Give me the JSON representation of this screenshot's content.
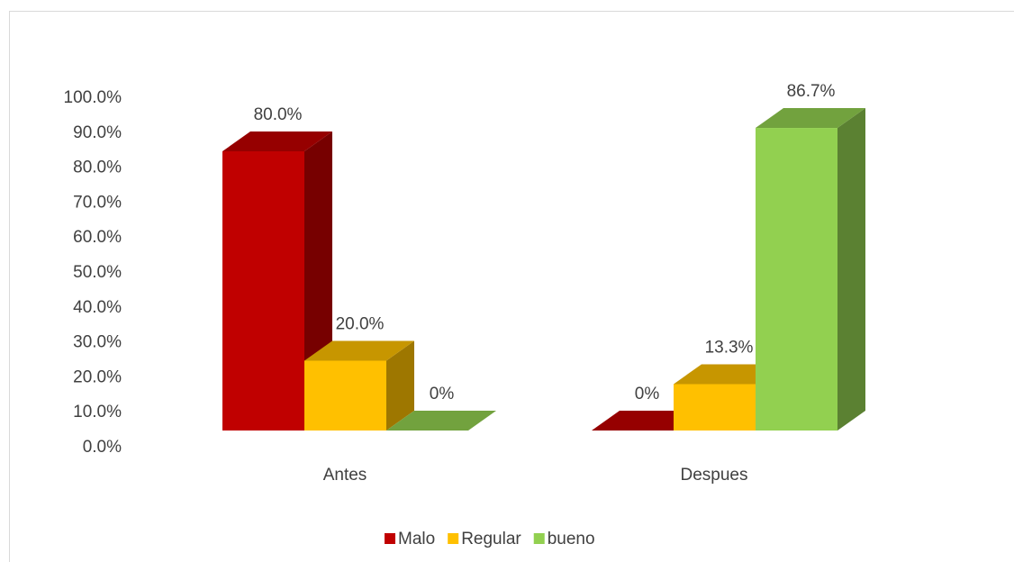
{
  "chart_data": {
    "type": "bar3d",
    "categories": [
      "Antes",
      "Despues"
    ],
    "series": [
      {
        "name": "Malo",
        "color": "#c00000",
        "values": [
          80,
          0
        ],
        "value_labels": [
          "80.0%",
          "0%"
        ]
      },
      {
        "name": "Regular",
        "color": "#ffc000",
        "values": [
          20,
          13.3
        ],
        "value_labels": [
          "20.0%",
          "13.3%"
        ]
      },
      {
        "name": "bueno",
        "color": "#92d050",
        "values": [
          0,
          86.7
        ],
        "value_labels": [
          "0%",
          "86.7%"
        ]
      }
    ],
    "ylim": [
      0,
      100
    ],
    "yticks": [
      {
        "value": 0,
        "label": "0.0%"
      },
      {
        "value": 10,
        "label": "10.0%"
      },
      {
        "value": 20,
        "label": "20.0%"
      },
      {
        "value": 30,
        "label": "30.0%"
      },
      {
        "value": 40,
        "label": "40.0%"
      },
      {
        "value": 50,
        "label": "50.0%"
      },
      {
        "value": 60,
        "label": "60.0%"
      },
      {
        "value": 70,
        "label": "70.0%"
      },
      {
        "value": 80,
        "label": "80.0%"
      },
      {
        "value": 90,
        "label": "90.0%"
      },
      {
        "value": 100,
        "label": "100.0%"
      }
    ],
    "legend": "bottom"
  }
}
